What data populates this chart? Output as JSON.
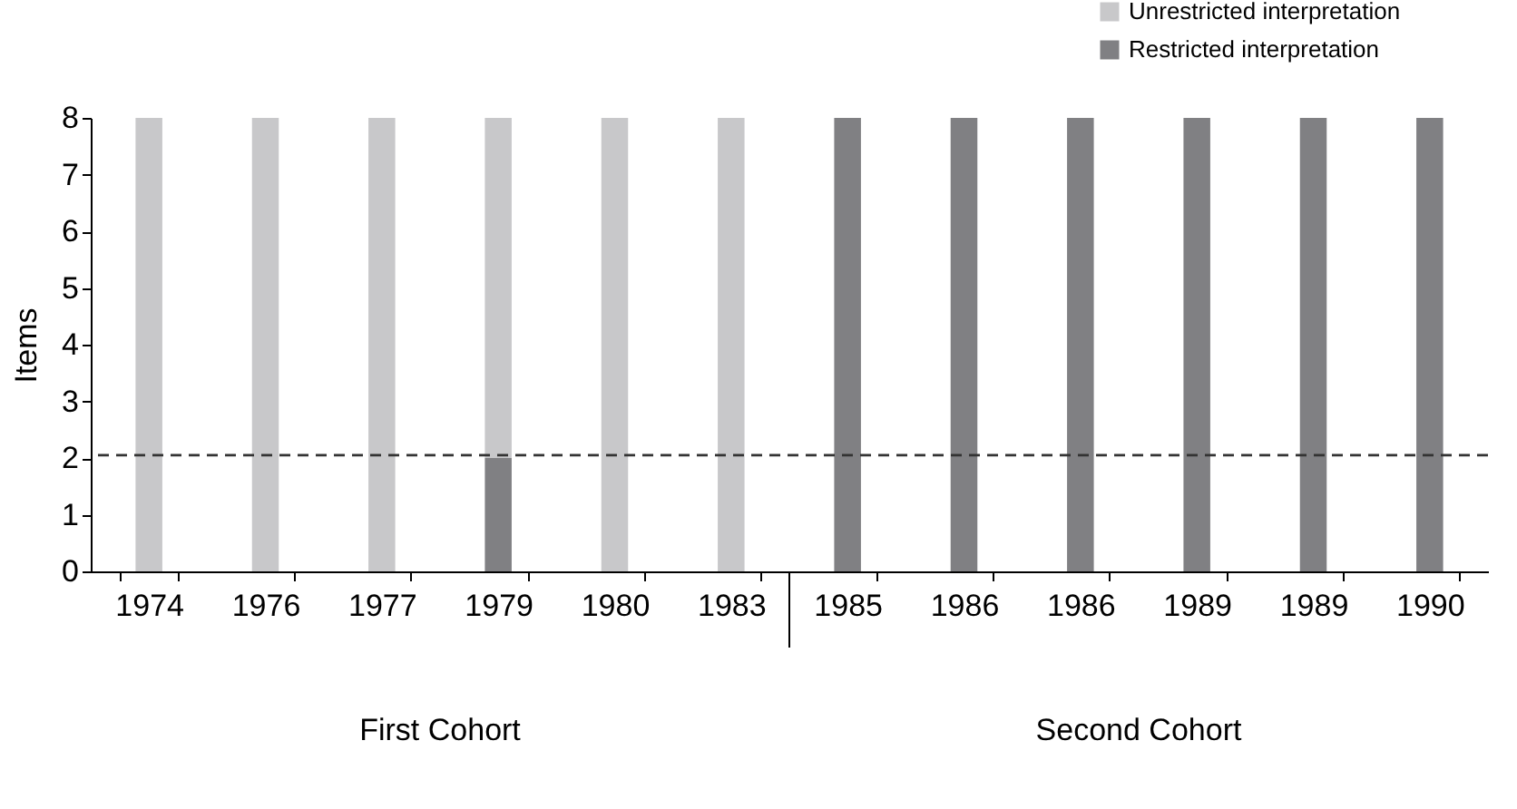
{
  "chart_data": {
    "type": "bar",
    "stacked": true,
    "ylabel": "Items",
    "categories": [
      "1974",
      "1976",
      "1977",
      "1979",
      "1980",
      "1983",
      "1985",
      "1986",
      "1986",
      "1989",
      "1989",
      "1990"
    ],
    "series": [
      {
        "name": "Restricted interpretation",
        "color": "#808083",
        "values": [
          0,
          0,
          0,
          2,
          0,
          0,
          8,
          8,
          8,
          8,
          8,
          8
        ]
      },
      {
        "name": "Unrestricted interpretation",
        "color": "#c8c8ca",
        "values": [
          8,
          8,
          8,
          6,
          8,
          8,
          0,
          0,
          0,
          0,
          0,
          0
        ]
      }
    ],
    "ylim": [
      0,
      8
    ],
    "yticks": [
      0,
      1,
      2,
      3,
      4,
      5,
      6,
      7,
      8
    ],
    "grid": false,
    "legend": "top right",
    "ref_lines": [
      {
        "axis": "y",
        "value": 2.05,
        "line_style": "dashed",
        "color": "#333333"
      }
    ],
    "annotations": [
      "First Cohort",
      "Second Cohort"
    ]
  }
}
